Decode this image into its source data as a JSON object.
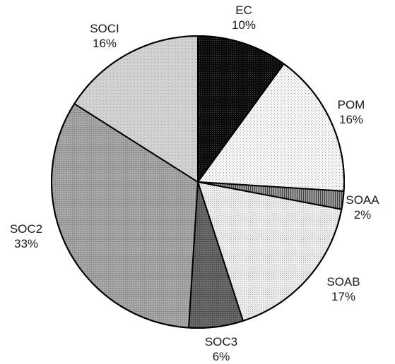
{
  "chart_data": {
    "type": "pie",
    "slices": [
      {
        "label": "EC",
        "value": 10,
        "pct_label": "10%",
        "fill": "#0d0d0d"
      },
      {
        "label": "POM",
        "value": 16,
        "pct_label": "16%",
        "fill": "#f4f4f4"
      },
      {
        "label": "SOAA",
        "value": 2,
        "pct_label": "2%",
        "fill": "#8a8a8a"
      },
      {
        "label": "SOAB",
        "value": 17,
        "pct_label": "17%",
        "fill": "#ececec"
      },
      {
        "label": "SOC3",
        "value": 6,
        "pct_label": "6%",
        "fill": "#6b6b6b"
      },
      {
        "label": "SOC2",
        "value": 33,
        "pct_label": "33%",
        "fill": "#a6a6a6"
      },
      {
        "label": "SOCI",
        "value": 16,
        "pct_label": "16%",
        "fill": "#cdcdcd"
      }
    ]
  }
}
